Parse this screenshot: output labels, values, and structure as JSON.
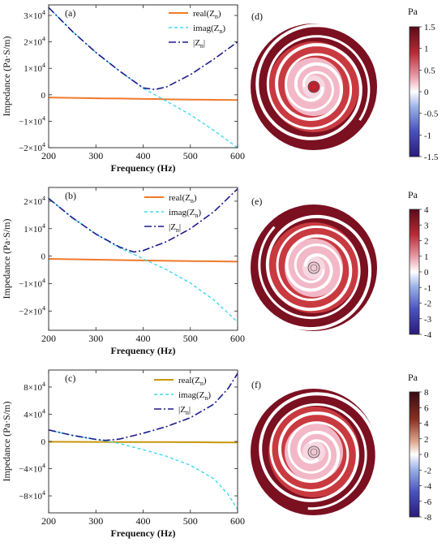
{
  "colors": {
    "real_a": "#f07a2a",
    "real_b": "#f07a2a",
    "real_c": "#c8960a",
    "imag": "#3fd8ee",
    "abs": "#1a1a8c",
    "spiral_dark": "#7a1020",
    "spiral_mid": "#c93a40",
    "spiral_light": "#f2b8c8",
    "gap": "#ffffff"
  },
  "chart_data": [
    {
      "type": "line",
      "label": "(a)",
      "xlabel": "Frequency (Hz)",
      "ylabel": "Impedance (Pa·S/m)",
      "xlim": [
        200,
        600
      ],
      "ylim": [
        -20000,
        34000
      ],
      "xticks": [
        "200",
        "300",
        "400",
        "500",
        "600"
      ],
      "yticks": [
        {
          "v": 30000,
          "m": "3",
          "e": "4"
        },
        {
          "v": 20000,
          "m": "2",
          "e": "4"
        },
        {
          "v": 10000,
          "m": "1",
          "e": "4"
        },
        {
          "v": 0,
          "m": "0",
          "e": ""
        },
        {
          "v": -10000,
          "m": "−1",
          "e": "4"
        },
        {
          "v": -20000,
          "m": "−2",
          "e": "4"
        }
      ],
      "legend": [
        "real(Z",
        "imag(Z",
        "|Z"
      ],
      "legend_sub": "n",
      "legend_tail": [
        ")",
        ")",
        "|"
      ],
      "x": [
        200,
        250,
        300,
        350,
        400,
        425,
        450,
        500,
        550,
        600
      ],
      "series": [
        {
          "key": "real",
          "values": [
            -1000,
            -1150,
            -1300,
            -1400,
            -1550,
            -1600,
            -1700,
            -1800,
            -1900,
            -2000
          ]
        },
        {
          "key": "imag",
          "values": [
            33000,
            24000,
            16000,
            9000,
            2500,
            0,
            -2500,
            -7500,
            -13500,
            -20000
          ]
        },
        {
          "key": "abs",
          "values": [
            33000,
            24000,
            16000,
            9000,
            2600,
            2000,
            3000,
            7600,
            13500,
            20000
          ]
        }
      ]
    },
    {
      "type": "line",
      "label": "(b)",
      "xlabel": "Frequency (Hz)",
      "ylabel": "Impedance (Pa·S/m)",
      "xlim": [
        200,
        600
      ],
      "ylim": [
        -27000,
        25000
      ],
      "xticks": [
        "200",
        "300",
        "400",
        "500",
        "600"
      ],
      "yticks": [
        {
          "v": 20000,
          "m": "2",
          "e": "4"
        },
        {
          "v": 10000,
          "m": "1",
          "e": "4"
        },
        {
          "v": 0,
          "m": "0",
          "e": ""
        },
        {
          "v": -10000,
          "m": "−1",
          "e": "4"
        },
        {
          "v": -20000,
          "m": "−2",
          "e": "4"
        }
      ],
      "legend": [
        "real(Z",
        "imag(Z",
        "|Z"
      ],
      "legend_sub": "n",
      "legend_tail": [
        ")",
        ")",
        "|"
      ],
      "x": [
        200,
        250,
        300,
        350,
        380,
        400,
        450,
        500,
        550,
        600
      ],
      "series": [
        {
          "key": "real",
          "values": [
            -1000,
            -1150,
            -1300,
            -1450,
            -1500,
            -1550,
            -1700,
            -1800,
            -1900,
            -2000
          ]
        },
        {
          "key": "imag",
          "values": [
            21000,
            14000,
            8000,
            3000,
            700,
            -1000,
            -5000,
            -9800,
            -16000,
            -24000
          ]
        },
        {
          "key": "abs",
          "values": [
            21000,
            14000,
            8000,
            3300,
            1500,
            2000,
            5300,
            10000,
            16200,
            24500
          ]
        }
      ]
    },
    {
      "type": "line",
      "label": "(c)",
      "xlabel": "Frequency (Hz)",
      "ylabel": "Impedance (Pa·S/m)",
      "xlim": [
        200,
        600
      ],
      "ylim": [
        -105000,
        105000
      ],
      "xticks": [
        "200",
        "300",
        "400",
        "500",
        "600"
      ],
      "yticks": [
        {
          "v": 80000,
          "m": "8",
          "e": "4"
        },
        {
          "v": 40000,
          "m": "4",
          "e": "4"
        },
        {
          "v": 0,
          "m": "0",
          "e": ""
        },
        {
          "v": -40000,
          "m": "−4",
          "e": "4"
        },
        {
          "v": -80000,
          "m": "−8",
          "e": "4"
        }
      ],
      "legend": [
        "real(Z",
        "imag(Z",
        "|Z"
      ],
      "legend_sub": "n",
      "legend_tail": [
        ")",
        ")",
        "|"
      ],
      "x": [
        200,
        250,
        300,
        320,
        350,
        400,
        450,
        500,
        550,
        580,
        600
      ],
      "series": [
        {
          "key": "real",
          "values": [
            -500,
            -600,
            -700,
            -750,
            -800,
            -900,
            -1000,
            -1100,
            -1300,
            -1400,
            -1500
          ]
        },
        {
          "key": "imag",
          "values": [
            17000,
            9000,
            3000,
            1000,
            -3000,
            -12000,
            -22000,
            -35000,
            -55000,
            -78000,
            -100000
          ]
        },
        {
          "key": "abs",
          "values": [
            17000,
            9000,
            3000,
            1500,
            3500,
            12000,
            22000,
            35000,
            55000,
            78000,
            100000
          ]
        }
      ]
    }
  ],
  "fields": [
    {
      "label": "(d)",
      "unit": "Pa",
      "ticks": [
        "1.5",
        "1",
        "0.5",
        "0",
        "-0.5",
        "-1",
        "-1.5"
      ]
    },
    {
      "label": "(e)",
      "unit": "Pa",
      "ticks": [
        "4",
        "3",
        "2",
        "1",
        "0",
        "-1",
        "-2",
        "-3",
        "-4"
      ]
    },
    {
      "label": "(f)",
      "unit": "Pa",
      "ticks": [
        "8",
        "6",
        "4",
        "2",
        "0",
        "-2",
        "-4",
        "-6",
        "-8"
      ]
    }
  ]
}
